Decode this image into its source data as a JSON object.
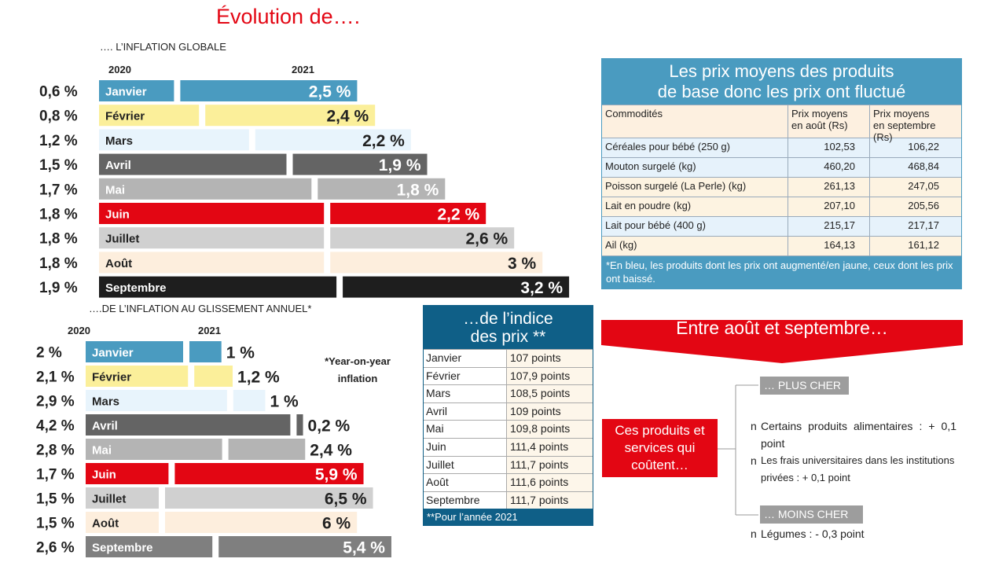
{
  "title": "Évolution de….",
  "chart_data": [
    {
      "type": "bar",
      "title": "…. L’INFLATION GLOBALE",
      "categories": [
        "Janvier",
        "Février",
        "Mars",
        "Avril",
        "Mai",
        "Juin",
        "Juillet",
        "Août",
        "Septembre"
      ],
      "series": [
        {
          "name": "2020",
          "values": [
            0.6,
            0.8,
            1.2,
            1.5,
            1.7,
            1.8,
            1.8,
            1.8,
            1.9
          ],
          "labels": [
            "0,6 %",
            "0,8 %",
            "1,2 %",
            "1,5 %",
            "1,7 %",
            "1,8 %",
            "1,8 %",
            "1,8 %",
            "1,9 %"
          ]
        },
        {
          "name": "2021",
          "values": [
            2.5,
            2.4,
            2.2,
            1.9,
            1.8,
            2.2,
            2.6,
            3,
            3.2
          ],
          "labels": [
            "2,5 %",
            "2,4 %",
            "2,2 %",
            "1,9 %",
            "1,8 %",
            "2,2 %",
            "2,6 %",
            "3 %",
            "3,2 %"
          ]
        }
      ],
      "colors": [
        "#4a9bc0",
        "#fbef9a",
        "#e8f4fc",
        "#646464",
        "#b4b4b4",
        "#e30613",
        "#d0d0d0",
        "#fdeedd",
        "#1e1e1e"
      ]
    },
    {
      "type": "bar",
      "title": "….DE L’INFLATION AU GLISSEMENT ANNUEL*",
      "note": "*Year-on-year inflation",
      "categories": [
        "Janvier",
        "Février",
        "Mars",
        "Avril",
        "Mai",
        "Juin",
        "Juillet",
        "Août",
        "Septembre"
      ],
      "series": [
        {
          "name": "2020",
          "values": [
            2,
            2.1,
            2.9,
            4.2,
            2.8,
            1.7,
            1.5,
            1.5,
            2.6
          ],
          "labels": [
            "2 %",
            "2,1 %",
            "2,9 %",
            "4,2 %",
            "2,8 %",
            "1,7 %",
            "1,5 %",
            "1,5 %",
            "2,6 %"
          ]
        },
        {
          "name": "2021",
          "values": [
            1,
            1.2,
            1,
            0.2,
            2.4,
            5.9,
            6.5,
            6,
            5.4
          ],
          "labels": [
            "1 %",
            "1,2 %",
            "1 %",
            "0,2 %",
            "2,4 %",
            "5,9 %",
            "6,5 %",
            "6 %",
            "5,4 %"
          ]
        }
      ],
      "colors": [
        "#4a9bc0",
        "#fbef9a",
        "#e8f4fc",
        "#646464",
        "#b4b4b4",
        "#e30613",
        "#d0d0d0",
        "#fdeedd",
        "#7f7f7f"
      ]
    }
  ],
  "prices": {
    "title_line1": "Les prix moyens des produits",
    "title_line2": "de base donc les prix ont fluctué",
    "headers": [
      "Commodités",
      "Prix moyens en août (Rs)",
      "Prix moyens en septembre (Rs)"
    ],
    "rows": [
      {
        "item": "Céréales pour bébé  (250 g)",
        "aug": "102,53",
        "sep": "106,22",
        "trend": "up"
      },
      {
        "item": "Mouton surgelé (kg)",
        "aug": "460,20",
        "sep": "468,84",
        "trend": "up"
      },
      {
        "item": "Poisson surgelé (La Perle) (kg)",
        "aug": "261,13",
        "sep": "247,05",
        "trend": "down"
      },
      {
        "item": "Lait en poudre (kg)",
        "aug": "207,10",
        "sep": "205,56",
        "trend": "down"
      },
      {
        "item": "Lait pour bébé (400 g)",
        "aug": "215,17",
        "sep": "217,17",
        "trend": "up"
      },
      {
        "item": "Ail (kg)",
        "aug": "164,13",
        "sep": "161,12",
        "trend": "down"
      }
    ],
    "footnote": "*En bleu, les produits dont les prix ont augmenté/en jaune, ceux dont les prix ont baissé.",
    "colors": {
      "header": "#4a9bc0",
      "up": "#e6f2fb",
      "down": "#fdf3e1"
    }
  },
  "index": {
    "title_line1": "…de l’indice",
    "title_line2": "des prix **",
    "rows": [
      {
        "month": "Janvier",
        "value": "107 points"
      },
      {
        "month": "Février",
        "value": "107,9 points"
      },
      {
        "month": "Mars",
        "value": "108,5 points"
      },
      {
        "month": "Avril",
        "value": "109 points"
      },
      {
        "month": "Mai",
        "value": "109,8 points"
      },
      {
        "month": "Juin",
        "value": "111,4 points"
      },
      {
        "month": "Juillet",
        "value": "111,7 points"
      },
      {
        "month": "Août",
        "value": "111,6 points"
      },
      {
        "month": "Septembre",
        "value": "111,7 points"
      }
    ],
    "footnote": "**Pour l’année 2021"
  },
  "changes": {
    "banner": "Entre août et septembre…",
    "box": "Ces produits et services qui coûtent…",
    "more_label": "… PLUS CHER",
    "more_items": [
      "Certains produits alimentaires : + 0,1 point",
      "Les frais universitaires dans les institutions privées : + 0,1 point"
    ],
    "less_label": "… MOINS CHER",
    "less_items": [
      "Légumes : - 0,3 point"
    ],
    "bullet": "n",
    "accent": "#e30613"
  }
}
